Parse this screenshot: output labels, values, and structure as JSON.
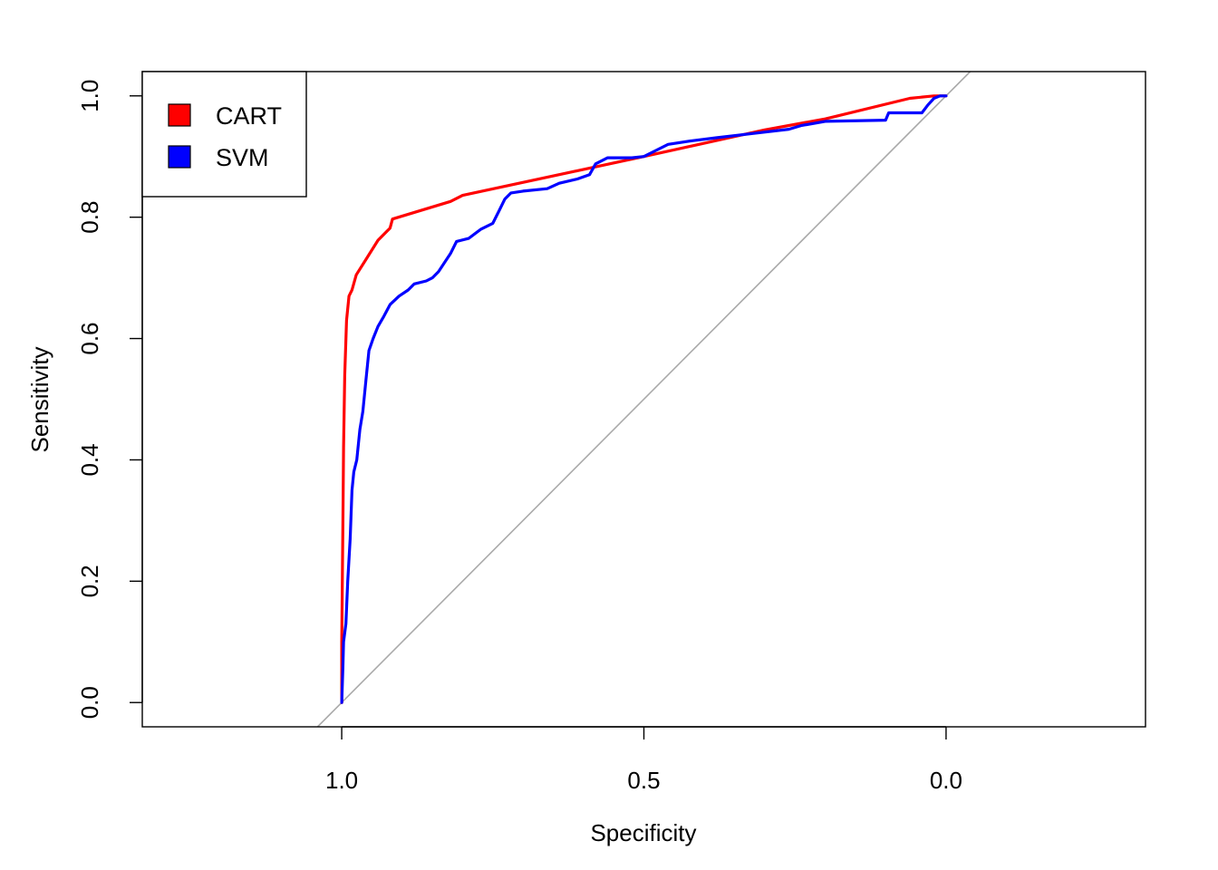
{
  "chart_data": {
    "type": "line",
    "title": "",
    "xlabel": "Specificity",
    "ylabel": "Sensitivity",
    "xlim": [
      1.33,
      -0.33
    ],
    "ylim": [
      -0.04,
      1.04
    ],
    "x_reversed": true,
    "x_ticks": [
      1.0,
      0.5,
      0.0
    ],
    "x_tick_labels": [
      "1.0",
      "0.5",
      "0.0"
    ],
    "y_ticks": [
      0.0,
      0.2,
      0.4,
      0.6,
      0.8,
      1.0
    ],
    "y_tick_labels": [
      "0.0",
      "0.2",
      "0.4",
      "0.6",
      "0.8",
      "1.0"
    ],
    "grid": false,
    "legend_position": "top-left",
    "reference_line": {
      "from": [
        1.0,
        0.0
      ],
      "to": [
        0.0,
        1.0
      ],
      "color": "#aaaaaa"
    },
    "series": [
      {
        "name": "CART",
        "color": "#ff0000",
        "points": [
          [
            1.0,
            0.0
          ],
          [
            1.0,
            0.1
          ],
          [
            0.998,
            0.3
          ],
          [
            0.997,
            0.42
          ],
          [
            0.995,
            0.54
          ],
          [
            0.992,
            0.63
          ],
          [
            0.988,
            0.67
          ],
          [
            0.983,
            0.68
          ],
          [
            0.976,
            0.705
          ],
          [
            0.96,
            0.73
          ],
          [
            0.94,
            0.762
          ],
          [
            0.92,
            0.782
          ],
          [
            0.916,
            0.797
          ],
          [
            0.82,
            0.826
          ],
          [
            0.8,
            0.836
          ],
          [
            0.5,
            0.9
          ],
          [
            0.3,
            0.944
          ],
          [
            0.2,
            0.962
          ],
          [
            0.06,
            0.996
          ],
          [
            0.02,
            1.0
          ],
          [
            0.0,
            1.0
          ]
        ]
      },
      {
        "name": "SVM",
        "color": "#0000ff",
        "points": [
          [
            1.0,
            0.0
          ],
          [
            0.998,
            0.06
          ],
          [
            0.997,
            0.1
          ],
          [
            0.993,
            0.13
          ],
          [
            0.99,
            0.2
          ],
          [
            0.986,
            0.27
          ],
          [
            0.983,
            0.35
          ],
          [
            0.98,
            0.38
          ],
          [
            0.975,
            0.4
          ],
          [
            0.97,
            0.45
          ],
          [
            0.965,
            0.48
          ],
          [
            0.96,
            0.53
          ],
          [
            0.955,
            0.58
          ],
          [
            0.948,
            0.6
          ],
          [
            0.94,
            0.62
          ],
          [
            0.93,
            0.637
          ],
          [
            0.92,
            0.656
          ],
          [
            0.905,
            0.67
          ],
          [
            0.89,
            0.68
          ],
          [
            0.88,
            0.69
          ],
          [
            0.86,
            0.695
          ],
          [
            0.85,
            0.7
          ],
          [
            0.84,
            0.71
          ],
          [
            0.83,
            0.725
          ],
          [
            0.82,
            0.74
          ],
          [
            0.81,
            0.76
          ],
          [
            0.79,
            0.765
          ],
          [
            0.77,
            0.78
          ],
          [
            0.75,
            0.79
          ],
          [
            0.74,
            0.81
          ],
          [
            0.73,
            0.83
          ],
          [
            0.72,
            0.84
          ],
          [
            0.7,
            0.843
          ],
          [
            0.66,
            0.847
          ],
          [
            0.64,
            0.856
          ],
          [
            0.61,
            0.863
          ],
          [
            0.59,
            0.87
          ],
          [
            0.58,
            0.888
          ],
          [
            0.56,
            0.898
          ],
          [
            0.52,
            0.898
          ],
          [
            0.5,
            0.9
          ],
          [
            0.48,
            0.91
          ],
          [
            0.46,
            0.92
          ],
          [
            0.42,
            0.926
          ],
          [
            0.38,
            0.931
          ],
          [
            0.32,
            0.938
          ],
          [
            0.26,
            0.945
          ],
          [
            0.24,
            0.951
          ],
          [
            0.2,
            0.958
          ],
          [
            0.1,
            0.96
          ],
          [
            0.095,
            0.972
          ],
          [
            0.04,
            0.972
          ],
          [
            0.03,
            0.985
          ],
          [
            0.02,
            0.996
          ],
          [
            0.01,
            1.0
          ],
          [
            0.0,
            1.0
          ]
        ]
      }
    ]
  }
}
